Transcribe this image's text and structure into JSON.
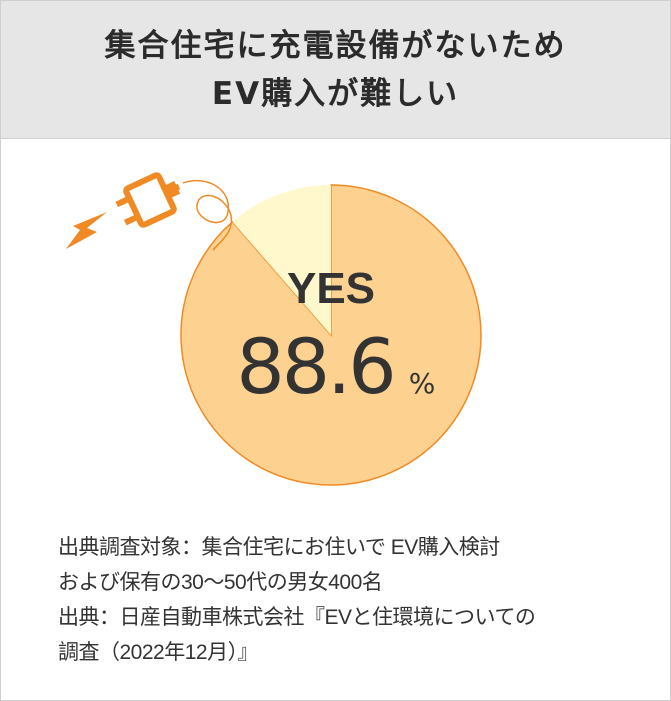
{
  "header": {
    "line1": "集合住宅に充電設備がないため",
    "line2": "EV購入が難しい"
  },
  "chart_data": {
    "type": "pie",
    "categories": [
      "YES",
      "other"
    ],
    "values": [
      88.6,
      11.4
    ],
    "label": "YES",
    "value_text": "88.6",
    "unit": "%",
    "colors": {
      "yes": "#fdd18f",
      "other": "#fff8cc",
      "outline": "#f08a24"
    }
  },
  "icons": {
    "plug": "plug-icon",
    "lightning": "lightning-icon",
    "color": "#f08a24"
  },
  "notes": [
    "出典調査対象：集合住宅にお住いで EV購入検討",
    "および保有の30〜50代の男女400名",
    "出典：日産自動車株式会社『EVと住環境についての調査（2022年12月）』"
  ],
  "notes_lines": [
    "出典調査対象：集合住宅にお住いで EV購入検討",
    "および保有の30〜50代の男女400名",
    "出典：日産自動車株式会社『EVと住環境についての",
    "調査（2022年12月）』"
  ]
}
